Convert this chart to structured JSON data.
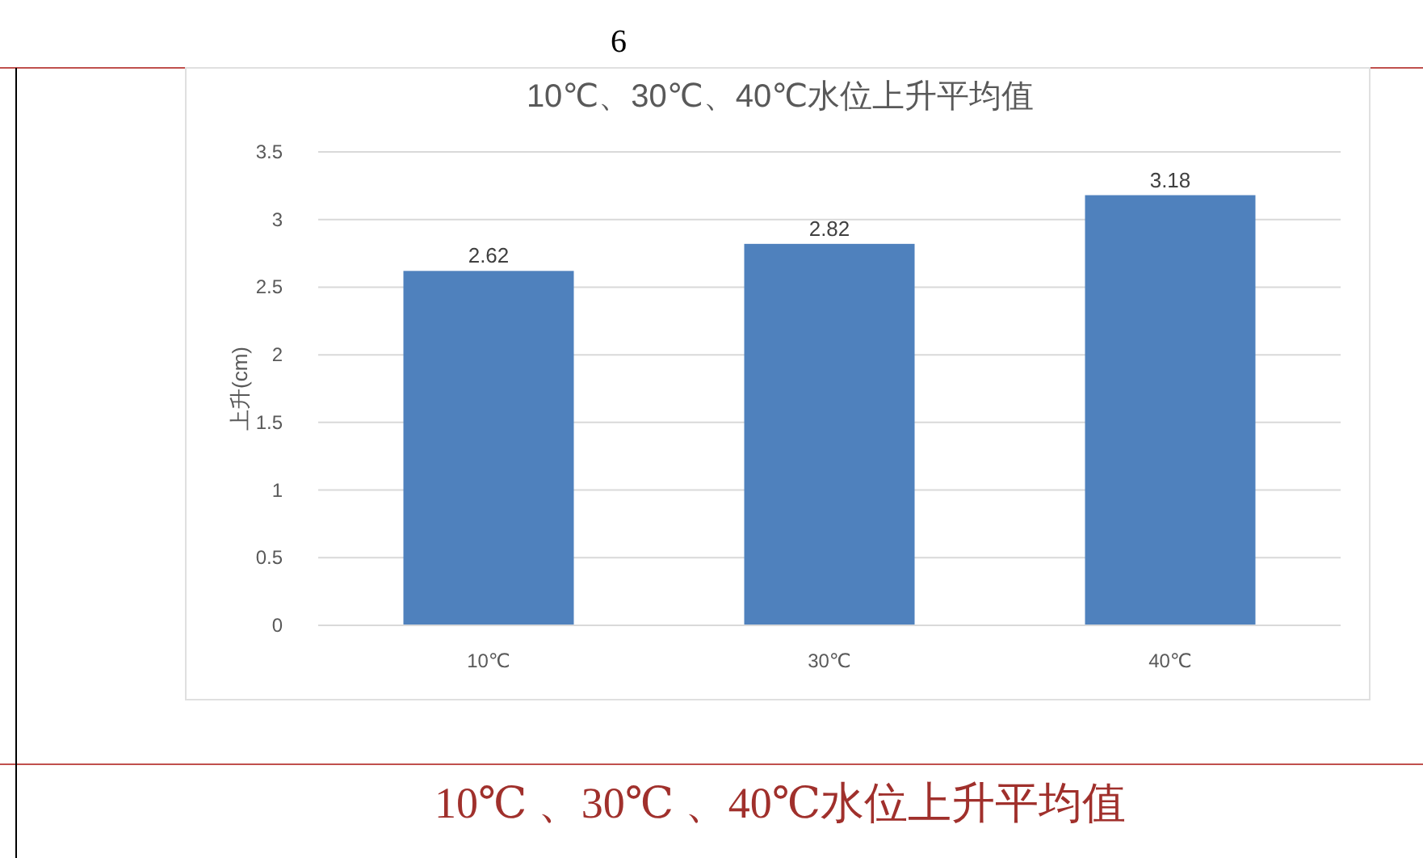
{
  "chart_data": {
    "type": "bar",
    "title": "10℃、30℃、40℃水位上升平均值",
    "ylabel": "上升(cm)",
    "categories": [
      "10℃",
      "30℃",
      "40℃"
    ],
    "values": [
      2.62,
      2.82,
      3.18
    ],
    "color": "#4f81bd",
    "ylim": [
      0,
      3.5
    ],
    "yticks": [
      0,
      0.5,
      1,
      1.5,
      2,
      2.5,
      3,
      3.5
    ],
    "grid": "y",
    "data_labels": true,
    "annotations": [
      "6",
      "10℃ 、30℃ 、40℃水位上升平均值"
    ]
  }
}
